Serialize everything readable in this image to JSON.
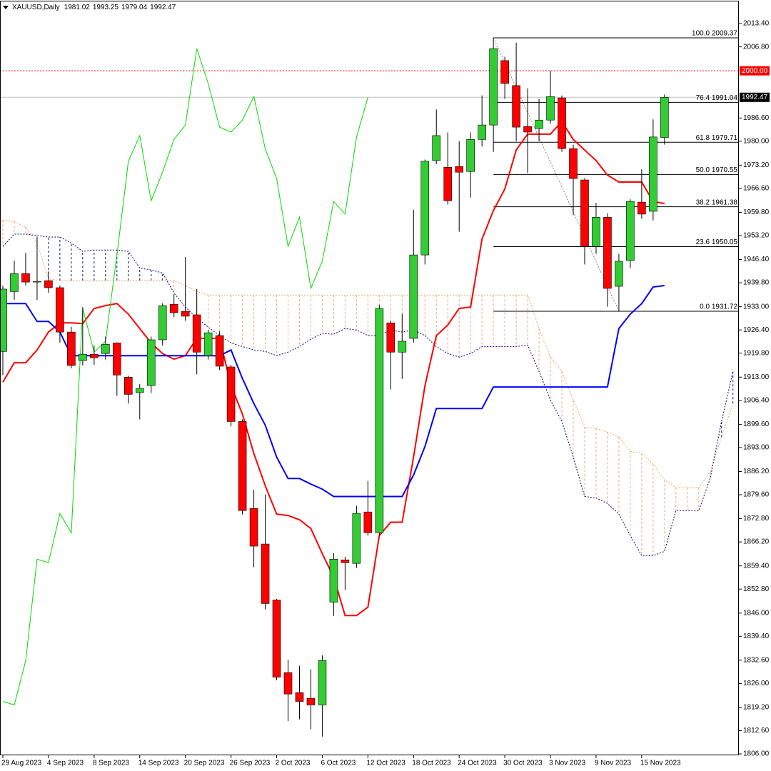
{
  "chart_data": {
    "type": "candlestick",
    "title": "XAUUSD,Daily",
    "categories": [
      "29 Aug 2023",
      null,
      null,
      null,
      "4 Sep 2023",
      null,
      null,
      null,
      "8 Sep 2023",
      null,
      null,
      null,
      "14 Sep 2023",
      null,
      null,
      null,
      "20 Sep 2023",
      null,
      null,
      null,
      "26 Sep 2023",
      null,
      null,
      null,
      "2 Oct 2023",
      null,
      null,
      null,
      "6 Oct 2023",
      null,
      null,
      null,
      "12 Oct 2023",
      null,
      null,
      null,
      "18 Oct 2023",
      null,
      null,
      null,
      "24 Oct 2023",
      null,
      null,
      null,
      "30 Oct 2023",
      null,
      null,
      null,
      "3 Nov 2023",
      null,
      null,
      null,
      "9 Nov 2023",
      null,
      null,
      null,
      "15 Nov 2023",
      null,
      null
    ],
    "open": [
      1920.3,
      1937.3,
      1942.4,
      1940.0,
      1940.4,
      1938.4,
      1925.8,
      1917.7,
      1919.5,
      1919.7,
      1922.7,
      1913.0,
      1908.6,
      1910.6,
      1923.6,
      1933.7,
      1931.7,
      1930.7,
      1919.1,
      1924.8,
      1915.9,
      1900.4,
      1875.7,
      1865.6,
      1849.7,
      1829.1,
      1823.4,
      1821.8,
      1819.9,
      1849.1,
      1861.1,
      1860.1,
      1874.7,
      1868.8,
      1928.4,
      1920.1,
      1924.0,
      1947.7,
      1974.5,
      1972.6,
      1972.8,
      1971.4,
      1980.5,
      1984.6,
      2002.9,
      1995.8,
      1984.2,
      1983.6,
      1986.0,
      1992.3,
      1977.9,
      1969.0,
      1950.1,
      1958.4,
      1938.8,
      1946.1,
      1962.7,
      1960.1,
      1981.02
    ],
    "high": [
      1939.0,
      1946.1,
      1948.3,
      1952.6,
      1943.0,
      1939.0,
      1927.3,
      1932.9,
      1922.0,
      1924.5,
      1922.9,
      1913.4,
      1911.0,
      1924.5,
      1934.0,
      1936.5,
      1947.1,
      1938.0,
      1926.5,
      1926.0,
      1916.5,
      1901.0,
      1881.0,
      1879.7,
      1850.0,
      1832.8,
      1831.0,
      1830.0,
      1834.0,
      1863.0,
      1862.0,
      1876.5,
      1883.5,
      1933.5,
      1929.0,
      1931.0,
      1960.5,
      1974.8,
      1989.0,
      1982.5,
      1980.0,
      1982.5,
      1993.0,
      2009.37,
      2004.0,
      2008.0,
      1995.0,
      1992.0,
      2000.0,
      1993.0,
      1979.0,
      1969.5,
      1962.5,
      1959.5,
      1948.0,
      1963.5,
      1972.0,
      1986.2,
      1993.25
    ],
    "low": [
      1913.6,
      1935.0,
      1939.0,
      1934.9,
      1937.0,
      1922.8,
      1915.5,
      1916.3,
      1916.5,
      1918.0,
      1907.7,
      1905.5,
      1901.0,
      1908.5,
      1922.0,
      1930.0,
      1929.0,
      1913.8,
      1918.0,
      1915.0,
      1899.0,
      1874.0,
      1859.0,
      1847.0,
      1826.9,
      1815.3,
      1815.8,
      1813.0,
      1810.9,
      1845.2,
      1852.5,
      1858.8,
      1868.0,
      1868.0,
      1909.5,
      1912.5,
      1922.8,
      1945.0,
      1973.5,
      1962.0,
      1954.3,
      1964.0,
      1978.5,
      1977.0,
      1992.0,
      1980.0,
      1971.0,
      1980.0,
      1985.0,
      1977.0,
      1959.0,
      1945.0,
      1948.0,
      1933.0,
      1931.72,
      1944.0,
      1958.0,
      1957.5,
      1979.04
    ],
    "close": [
      1938.0,
      1942.4,
      1940.0,
      1940.2,
      1938.4,
      1925.8,
      1916.3,
      1919.5,
      1918.5,
      1922.3,
      1913.6,
      1908.1,
      1909.8,
      1923.6,
      1933.3,
      1931.3,
      1930.3,
      1920.1,
      1925.6,
      1916.1,
      1900.4,
      1875.1,
      1865.0,
      1848.7,
      1827.8,
      1823.0,
      1820.9,
      1819.9,
      1832.5,
      1861.3,
      1860.3,
      1874.3,
      1868.8,
      1932.5,
      1920.1,
      1923.2,
      1947.7,
      1974.3,
      1981.6,
      1963.1,
      1971.2,
      1980.5,
      1984.6,
      2006.3,
      1996.4,
      1984.0,
      1982.6,
      1986.0,
      1992.7,
      1977.9,
      1969.4,
      1950.1,
      1958.4,
      1938.2,
      1945.9,
      1962.9,
      1959.3,
      1981.2,
      1992.47
    ],
    "bull_color": "#32cd32",
    "bear_color": "#ff0000",
    "ylim": [
      1805.6,
      2019.7
    ],
    "yticks": [
      {
        "value": 2013.4,
        "label": "2013.40"
      },
      {
        "value": 2006.8,
        "label": "2006.80"
      },
      {
        "value": 1986.6,
        "label": "1986.60"
      },
      {
        "value": 1980,
        "label": "1980.00"
      },
      {
        "value": 1973.2,
        "label": "1973.20"
      },
      {
        "value": 1966.6,
        "label": "1966.60"
      },
      {
        "value": 1959.8,
        "label": "1959.80"
      },
      {
        "value": 1953.2,
        "label": "1953.20"
      },
      {
        "value": 1946.4,
        "label": "1946.40"
      },
      {
        "value": 1939.8,
        "label": "1939.80"
      },
      {
        "value": 1933,
        "label": "1933.00"
      },
      {
        "value": 1926.4,
        "label": "1926.40"
      },
      {
        "value": 1919.8,
        "label": "1919.80"
      },
      {
        "value": 1913,
        "label": "1913.00"
      },
      {
        "value": 1906.4,
        "label": "1906.40"
      },
      {
        "value": 1899.6,
        "label": "1899.60"
      },
      {
        "value": 1893,
        "label": "1893.00"
      },
      {
        "value": 1886.2,
        "label": "1886.20"
      },
      {
        "value": 1879.6,
        "label": "1879.60"
      },
      {
        "value": 1872.8,
        "label": "1872.80"
      },
      {
        "value": 1866.2,
        "label": "1866.20"
      },
      {
        "value": 1859.4,
        "label": "1859.40"
      },
      {
        "value": 1852.8,
        "label": "1852.80"
      },
      {
        "value": 1846,
        "label": "1846.00"
      },
      {
        "value": 1839.4,
        "label": "1839.40"
      },
      {
        "value": 1832.6,
        "label": "1832.60"
      },
      {
        "value": 1826,
        "label": "1826.00"
      },
      {
        "value": 1819.2,
        "label": "1819.20"
      },
      {
        "value": 1812.6,
        "label": "1812.60"
      },
      {
        "value": 1806,
        "label": "1806.00"
      }
    ],
    "series": [
      {
        "color": "#ff0000",
        "values": [
          1911.6,
          1917.1,
          1917.1,
          1920.7,
          1925.8,
          1928.4,
          1928.4,
          1928.2,
          1932.5,
          1933.3,
          1933.9,
          1930.9,
          1926.8,
          1922.7,
          1919.7,
          1918.1,
          1919.1,
          1924.0,
          1924.0,
          1924.0,
          1910.6,
          1902.5,
          1891.3,
          1882.2,
          1874.1,
          1873.7,
          1872.5,
          1870.0,
          1862.9,
          1856.2,
          1845.3,
          1845.3,
          1847.7,
          1868.0,
          1871.8,
          1871.8,
          1890.3,
          1910.6,
          1924.8,
          1927.8,
          1932.5,
          1932.9,
          1952.2,
          1960.3,
          1966.4,
          1977.5,
          1982.0,
          1982.0,
          1982.0,
          1985.6,
          1980.5,
          1977.5,
          1974.5,
          1970.4,
          1968.4,
          1968.4,
          1968.4,
          1962.9,
          1962.3
        ]
      },
      {
        "color": "#0000ff",
        "values": [
          1933.9,
          1933.9,
          1933.9,
          1928.8,
          1928.8,
          1925.8,
          1919.1,
          1919.1,
          1919.1,
          1919.1,
          1919.1,
          1919.1,
          1919.1,
          1919.1,
          1919.1,
          1919.1,
          1919.1,
          1919.1,
          1919.1,
          1919.1,
          1920.7,
          1912.6,
          1905.5,
          1899.4,
          1890.3,
          1884.2,
          1884.2,
          1882.6,
          1881.2,
          1879.1,
          1879.1,
          1879.1,
          1879.1,
          1879.1,
          1879.1,
          1879.1,
          1885.2,
          1893.3,
          1904.1,
          1904.1,
          1904.1,
          1904.1,
          1904.1,
          1910.2,
          1910.2,
          1910.2,
          1910.2,
          1910.2,
          1910.2,
          1910.2,
          1910.2,
          1910.2,
          1910.2,
          1910.2,
          1926.8,
          1930.9,
          1933.9,
          1938.6,
          1939.0
        ]
      }
    ],
    "lagging_color": "#00dd00",
    "cloud": {
      "span_a": {
        "color": "#f4a460",
        "values": [
          1957.6,
          1957.2,
          1955.6,
          1951.1,
          1941.0,
          1940.4,
          1940.4,
          1940.4,
          1940.4,
          1940.4,
          1940.4,
          1940.4,
          1940.4,
          1940.4,
          1940.4,
          1940.4,
          1939.0,
          1937.3,
          1936.3,
          1936.3,
          1936.3,
          1936.3,
          1936.3,
          1936.3,
          1936.3,
          1936.3,
          1936.3,
          1936.3,
          1936.3,
          1936.3,
          1936.3,
          1936.3,
          1936.3,
          1936.3,
          1936.3,
          1936.3,
          1936.3,
          1936.3,
          1936.3,
          1936.3,
          1936.3,
          1936.3,
          1936.3,
          1936.3,
          1936.3,
          1936.3,
          1936.3,
          1926.8,
          1918.7,
          1914.6,
          1906.5,
          1898.8,
          1898.4,
          1897.4,
          1896.0,
          1891.9,
          1891.3,
          1888.3,
          1883.8,
          1881.6,
          1881.6,
          1881.6,
          1886.2,
          1896.0,
          1905.5
        ]
      },
      "span_b": {
        "color": "#000080",
        "values": [
          1950.1,
          1953.6,
          1953.6,
          1953.2,
          1952.8,
          1952.8,
          1951.1,
          1948.7,
          1949.1,
          1949.1,
          1949.1,
          1948.7,
          1944.0,
          1943.4,
          1942.6,
          1936.9,
          1932.9,
          1929.8,
          1927.2,
          1924.8,
          1922.7,
          1921.7,
          1920.7,
          1920.3,
          1919.1,
          1920.1,
          1921.7,
          1923.8,
          1925.4,
          1925.2,
          1926.8,
          1926.4,
          1924.8,
          1924.8,
          1926.4,
          1925.8,
          1926.4,
          1924.8,
          1921.7,
          1919.7,
          1918.7,
          1919.7,
          1921.7,
          1921.7,
          1921.7,
          1921.7,
          1922.1,
          1914.6,
          1906.5,
          1900.4,
          1890.3,
          1879.1,
          1878.7,
          1877.1,
          1874.1,
          1868.0,
          1862.3,
          1862.3,
          1863.5,
          1875.1,
          1875.1,
          1875.1,
          1884.2,
          1900.4,
          1914.6
        ]
      }
    },
    "fibonacci": {
      "color": "#000000",
      "levels": [
        {
          "value": 2009.37,
          "label": "100.0 2009.37"
        },
        {
          "value": 1991.04,
          "label": "76.4 1991.04"
        },
        {
          "value": 1979.71,
          "label": "61.8 1979.71"
        },
        {
          "value": 1970.55,
          "label": "50.0 1970.55"
        },
        {
          "value": 1961.38,
          "label": "38.2 1961.38"
        },
        {
          "value": 1950.05,
          "label": "23.6 1950.05"
        },
        {
          "value": 1931.72,
          "label": "0.0 1931.72"
        }
      ]
    },
    "price_line": {
      "value": 2000,
      "label": "2000.00",
      "color": "#ff0000"
    },
    "bid_color": "#c0c0c0"
  }
}
